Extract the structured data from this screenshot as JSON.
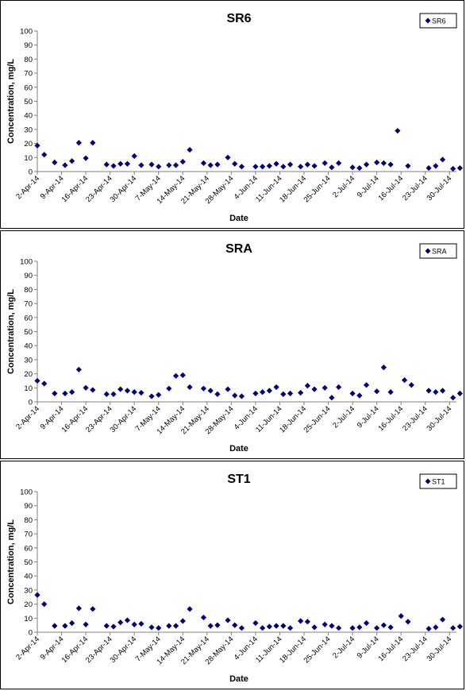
{
  "colors": {
    "marker": "#00007F",
    "axis": "#808080",
    "text": "#000000"
  },
  "chart_data": [
    {
      "type": "scatter",
      "title": "SR6",
      "xlabel": "Date",
      "ylabel": "Concentration, mg/L",
      "legend": "SR6",
      "legend_position": "top-right",
      "ylim": [
        0,
        100
      ],
      "yticks": [
        0,
        10,
        20,
        30,
        40,
        50,
        60,
        70,
        80,
        90,
        100
      ],
      "xlim": [
        "2014-04-02",
        "2014-08-01"
      ],
      "xticks": [
        "2-Apr-14",
        "9-Apr-14",
        "16-Apr-14",
        "23-Apr-14",
        "30-Apr-14",
        "7-May-14",
        "14-May-14",
        "21-May-14",
        "28-May-14",
        "4-Jun-14",
        "11-Jun-14",
        "18-Jun-14",
        "25-Jun-14",
        "2-Jul-14",
        "9-Jul-14",
        "16-Jul-14",
        "23-Jul-14",
        "30-Jul-14"
      ],
      "points": [
        {
          "x": "2014-04-02",
          "y": 18.5
        },
        {
          "x": "2014-04-04",
          "y": 12
        },
        {
          "x": "2014-04-07",
          "y": 6.5
        },
        {
          "x": "2014-04-10",
          "y": 4.5
        },
        {
          "x": "2014-04-12",
          "y": 7.5
        },
        {
          "x": "2014-04-14",
          "y": 20.5
        },
        {
          "x": "2014-04-16",
          "y": 9.5
        },
        {
          "x": "2014-04-18",
          "y": 20.5
        },
        {
          "x": "2014-04-22",
          "y": 5
        },
        {
          "x": "2014-04-24",
          "y": 4
        },
        {
          "x": "2014-04-26",
          "y": 5.5
        },
        {
          "x": "2014-04-28",
          "y": 5.5
        },
        {
          "x": "2014-04-30",
          "y": 11
        },
        {
          "x": "2014-05-02",
          "y": 4.5
        },
        {
          "x": "2014-05-05",
          "y": 5
        },
        {
          "x": "2014-05-07",
          "y": 3.5
        },
        {
          "x": "2014-05-10",
          "y": 4.5
        },
        {
          "x": "2014-05-12",
          "y": 4.5
        },
        {
          "x": "2014-05-14",
          "y": 7
        },
        {
          "x": "2014-05-16",
          "y": 15.5
        },
        {
          "x": "2014-05-20",
          "y": 6
        },
        {
          "x": "2014-05-22",
          "y": 4.5
        },
        {
          "x": "2014-05-24",
          "y": 5
        },
        {
          "x": "2014-05-27",
          "y": 10
        },
        {
          "x": "2014-05-29",
          "y": 5.5
        },
        {
          "x": "2014-05-31",
          "y": 3.5
        },
        {
          "x": "2014-06-04",
          "y": 3.5
        },
        {
          "x": "2014-06-06",
          "y": 3.5
        },
        {
          "x": "2014-06-08",
          "y": 4
        },
        {
          "x": "2014-06-10",
          "y": 5.5
        },
        {
          "x": "2014-06-12",
          "y": 3.5
        },
        {
          "x": "2014-06-14",
          "y": 5
        },
        {
          "x": "2014-06-17",
          "y": 3.5
        },
        {
          "x": "2014-06-19",
          "y": 5
        },
        {
          "x": "2014-06-21",
          "y": 4
        },
        {
          "x": "2014-06-24",
          "y": 6
        },
        {
          "x": "2014-06-26",
          "y": 3
        },
        {
          "x": "2014-06-28",
          "y": 6
        },
        {
          "x": "2014-07-02",
          "y": 3
        },
        {
          "x": "2014-07-04",
          "y": 2.5
        },
        {
          "x": "2014-07-06",
          "y": 5
        },
        {
          "x": "2014-07-09",
          "y": 6.5
        },
        {
          "x": "2014-07-11",
          "y": 6
        },
        {
          "x": "2014-07-13",
          "y": 5
        },
        {
          "x": "2014-07-15",
          "y": 29
        },
        {
          "x": "2014-07-18",
          "y": 4
        },
        {
          "x": "2014-07-24",
          "y": 2.5
        },
        {
          "x": "2014-07-26",
          "y": 4
        },
        {
          "x": "2014-07-28",
          "y": 8.5
        },
        {
          "x": "2014-07-31",
          "y": 2
        },
        {
          "x": "2014-08-02",
          "y": 2.5
        }
      ]
    },
    {
      "type": "scatter",
      "title": "SRA",
      "xlabel": "Date",
      "ylabel": "Concentration, mg/L",
      "legend": "SRA",
      "legend_position": "top-right",
      "ylim": [
        0,
        100
      ],
      "yticks": [
        0,
        10,
        20,
        30,
        40,
        50,
        60,
        70,
        80,
        90,
        100
      ],
      "xlim": [
        "2014-04-02",
        "2014-08-01"
      ],
      "xticks": [
        "2-Apr-14",
        "9-Apr-14",
        "16-Apr-14",
        "23-Apr-14",
        "30-Apr-14",
        "7-May-14",
        "14-May-14",
        "21-May-14",
        "28-May-14",
        "4-Jun-14",
        "11-Jun-14",
        "18-Jun-14",
        "25-Jun-14",
        "2-Jul-14",
        "9-Jul-14",
        "16-Jul-14",
        "23-Jul-14",
        "30-Jul-14"
      ],
      "points": [
        {
          "x": "2014-04-02",
          "y": 15
        },
        {
          "x": "2014-04-04",
          "y": 13
        },
        {
          "x": "2014-04-07",
          "y": 6
        },
        {
          "x": "2014-04-10",
          "y": 6
        },
        {
          "x": "2014-04-12",
          "y": 7
        },
        {
          "x": "2014-04-14",
          "y": 23
        },
        {
          "x": "2014-04-16",
          "y": 10
        },
        {
          "x": "2014-04-18",
          "y": 8.5
        },
        {
          "x": "2014-04-22",
          "y": 5.5
        },
        {
          "x": "2014-04-24",
          "y": 5.5
        },
        {
          "x": "2014-04-26",
          "y": 9
        },
        {
          "x": "2014-04-28",
          "y": 8
        },
        {
          "x": "2014-04-30",
          "y": 7
        },
        {
          "x": "2014-05-02",
          "y": 6.5
        },
        {
          "x": "2014-05-05",
          "y": 4
        },
        {
          "x": "2014-05-07",
          "y": 5
        },
        {
          "x": "2014-05-10",
          "y": 9.5
        },
        {
          "x": "2014-05-12",
          "y": 18.5
        },
        {
          "x": "2014-05-14",
          "y": 19
        },
        {
          "x": "2014-05-16",
          "y": 10.5
        },
        {
          "x": "2014-05-20",
          "y": 9.5
        },
        {
          "x": "2014-05-22",
          "y": 8
        },
        {
          "x": "2014-05-24",
          "y": 5.5
        },
        {
          "x": "2014-05-27",
          "y": 9
        },
        {
          "x": "2014-05-29",
          "y": 4.5
        },
        {
          "x": "2014-05-31",
          "y": 4
        },
        {
          "x": "2014-06-04",
          "y": 6
        },
        {
          "x": "2014-06-06",
          "y": 7
        },
        {
          "x": "2014-06-08",
          "y": 8
        },
        {
          "x": "2014-06-10",
          "y": 10.5
        },
        {
          "x": "2014-06-12",
          "y": 5.5
        },
        {
          "x": "2014-06-14",
          "y": 6
        },
        {
          "x": "2014-06-17",
          "y": 6.5
        },
        {
          "x": "2014-06-19",
          "y": 11.5
        },
        {
          "x": "2014-06-21",
          "y": 9
        },
        {
          "x": "2014-06-24",
          "y": 10
        },
        {
          "x": "2014-06-26",
          "y": 3
        },
        {
          "x": "2014-06-28",
          "y": 10.5
        },
        {
          "x": "2014-07-02",
          "y": 6
        },
        {
          "x": "2014-07-04",
          "y": 4.5
        },
        {
          "x": "2014-07-06",
          "y": 12
        },
        {
          "x": "2014-07-09",
          "y": 7.5
        },
        {
          "x": "2014-07-11",
          "y": 24.5
        },
        {
          "x": "2014-07-13",
          "y": 7
        },
        {
          "x": "2014-07-17",
          "y": 15.5
        },
        {
          "x": "2014-07-19",
          "y": 12
        },
        {
          "x": "2014-07-24",
          "y": 8
        },
        {
          "x": "2014-07-26",
          "y": 7
        },
        {
          "x": "2014-07-28",
          "y": 8
        },
        {
          "x": "2014-07-31",
          "y": 3
        },
        {
          "x": "2014-08-02",
          "y": 6
        }
      ]
    },
    {
      "type": "scatter",
      "title": "ST1",
      "xlabel": "Date",
      "ylabel": "Concentration, mg/L",
      "legend": "ST1",
      "legend_position": "top-right",
      "ylim": [
        0,
        100
      ],
      "yticks": [
        0,
        10,
        20,
        30,
        40,
        50,
        60,
        70,
        80,
        90,
        100
      ],
      "xlim": [
        "2014-04-02",
        "2014-08-01"
      ],
      "xticks": [
        "2-Apr-14",
        "9-Apr-14",
        "16-Apr-14",
        "23-Apr-14",
        "30-Apr-14",
        "7-May-14",
        "14-May-14",
        "21-May-14",
        "28-May-14",
        "4-Jun-14",
        "11-Jun-14",
        "18-Jun-14",
        "25-Jun-14",
        "2-Jul-14",
        "9-Jul-14",
        "16-Jul-14",
        "23-Jul-14",
        "30-Jul-14"
      ],
      "points": [
        {
          "x": "2014-04-02",
          "y": 26.5
        },
        {
          "x": "2014-04-04",
          "y": 20
        },
        {
          "x": "2014-04-07",
          "y": 4.5
        },
        {
          "x": "2014-04-10",
          "y": 4.5
        },
        {
          "x": "2014-04-12",
          "y": 6.5
        },
        {
          "x": "2014-04-14",
          "y": 17
        },
        {
          "x": "2014-04-16",
          "y": 5.5
        },
        {
          "x": "2014-04-18",
          "y": 16.5
        },
        {
          "x": "2014-04-22",
          "y": 4.5
        },
        {
          "x": "2014-04-24",
          "y": 4
        },
        {
          "x": "2014-04-26",
          "y": 7
        },
        {
          "x": "2014-04-28",
          "y": 8.5
        },
        {
          "x": "2014-04-30",
          "y": 5.5
        },
        {
          "x": "2014-05-02",
          "y": 6
        },
        {
          "x": "2014-05-05",
          "y": 3.5
        },
        {
          "x": "2014-05-07",
          "y": 3
        },
        {
          "x": "2014-05-10",
          "y": 4.5
        },
        {
          "x": "2014-05-12",
          "y": 4.5
        },
        {
          "x": "2014-05-14",
          "y": 8
        },
        {
          "x": "2014-05-16",
          "y": 16.5
        },
        {
          "x": "2014-05-20",
          "y": 10.5
        },
        {
          "x": "2014-05-22",
          "y": 4.5
        },
        {
          "x": "2014-05-24",
          "y": 5
        },
        {
          "x": "2014-05-27",
          "y": 8.5
        },
        {
          "x": "2014-05-29",
          "y": 5
        },
        {
          "x": "2014-05-31",
          "y": 3
        },
        {
          "x": "2014-06-04",
          "y": 6.5
        },
        {
          "x": "2014-06-06",
          "y": 3
        },
        {
          "x": "2014-06-08",
          "y": 4
        },
        {
          "x": "2014-06-10",
          "y": 4.5
        },
        {
          "x": "2014-06-12",
          "y": 4.5
        },
        {
          "x": "2014-06-14",
          "y": 3
        },
        {
          "x": "2014-06-17",
          "y": 8
        },
        {
          "x": "2014-06-19",
          "y": 7.5
        },
        {
          "x": "2014-06-21",
          "y": 3.5
        },
        {
          "x": "2014-06-24",
          "y": 5.5
        },
        {
          "x": "2014-06-26",
          "y": 4.5
        },
        {
          "x": "2014-06-28",
          "y": 3
        },
        {
          "x": "2014-07-02",
          "y": 3
        },
        {
          "x": "2014-07-04",
          "y": 3.5
        },
        {
          "x": "2014-07-06",
          "y": 6.5
        },
        {
          "x": "2014-07-09",
          "y": 3
        },
        {
          "x": "2014-07-11",
          "y": 5
        },
        {
          "x": "2014-07-13",
          "y": 3.5
        },
        {
          "x": "2014-07-16",
          "y": 11.5
        },
        {
          "x": "2014-07-18",
          "y": 7.5
        },
        {
          "x": "2014-07-24",
          "y": 2.5
        },
        {
          "x": "2014-07-26",
          "y": 3.5
        },
        {
          "x": "2014-07-28",
          "y": 9
        },
        {
          "x": "2014-07-31",
          "y": 3
        },
        {
          "x": "2014-08-02",
          "y": 4
        }
      ]
    }
  ]
}
